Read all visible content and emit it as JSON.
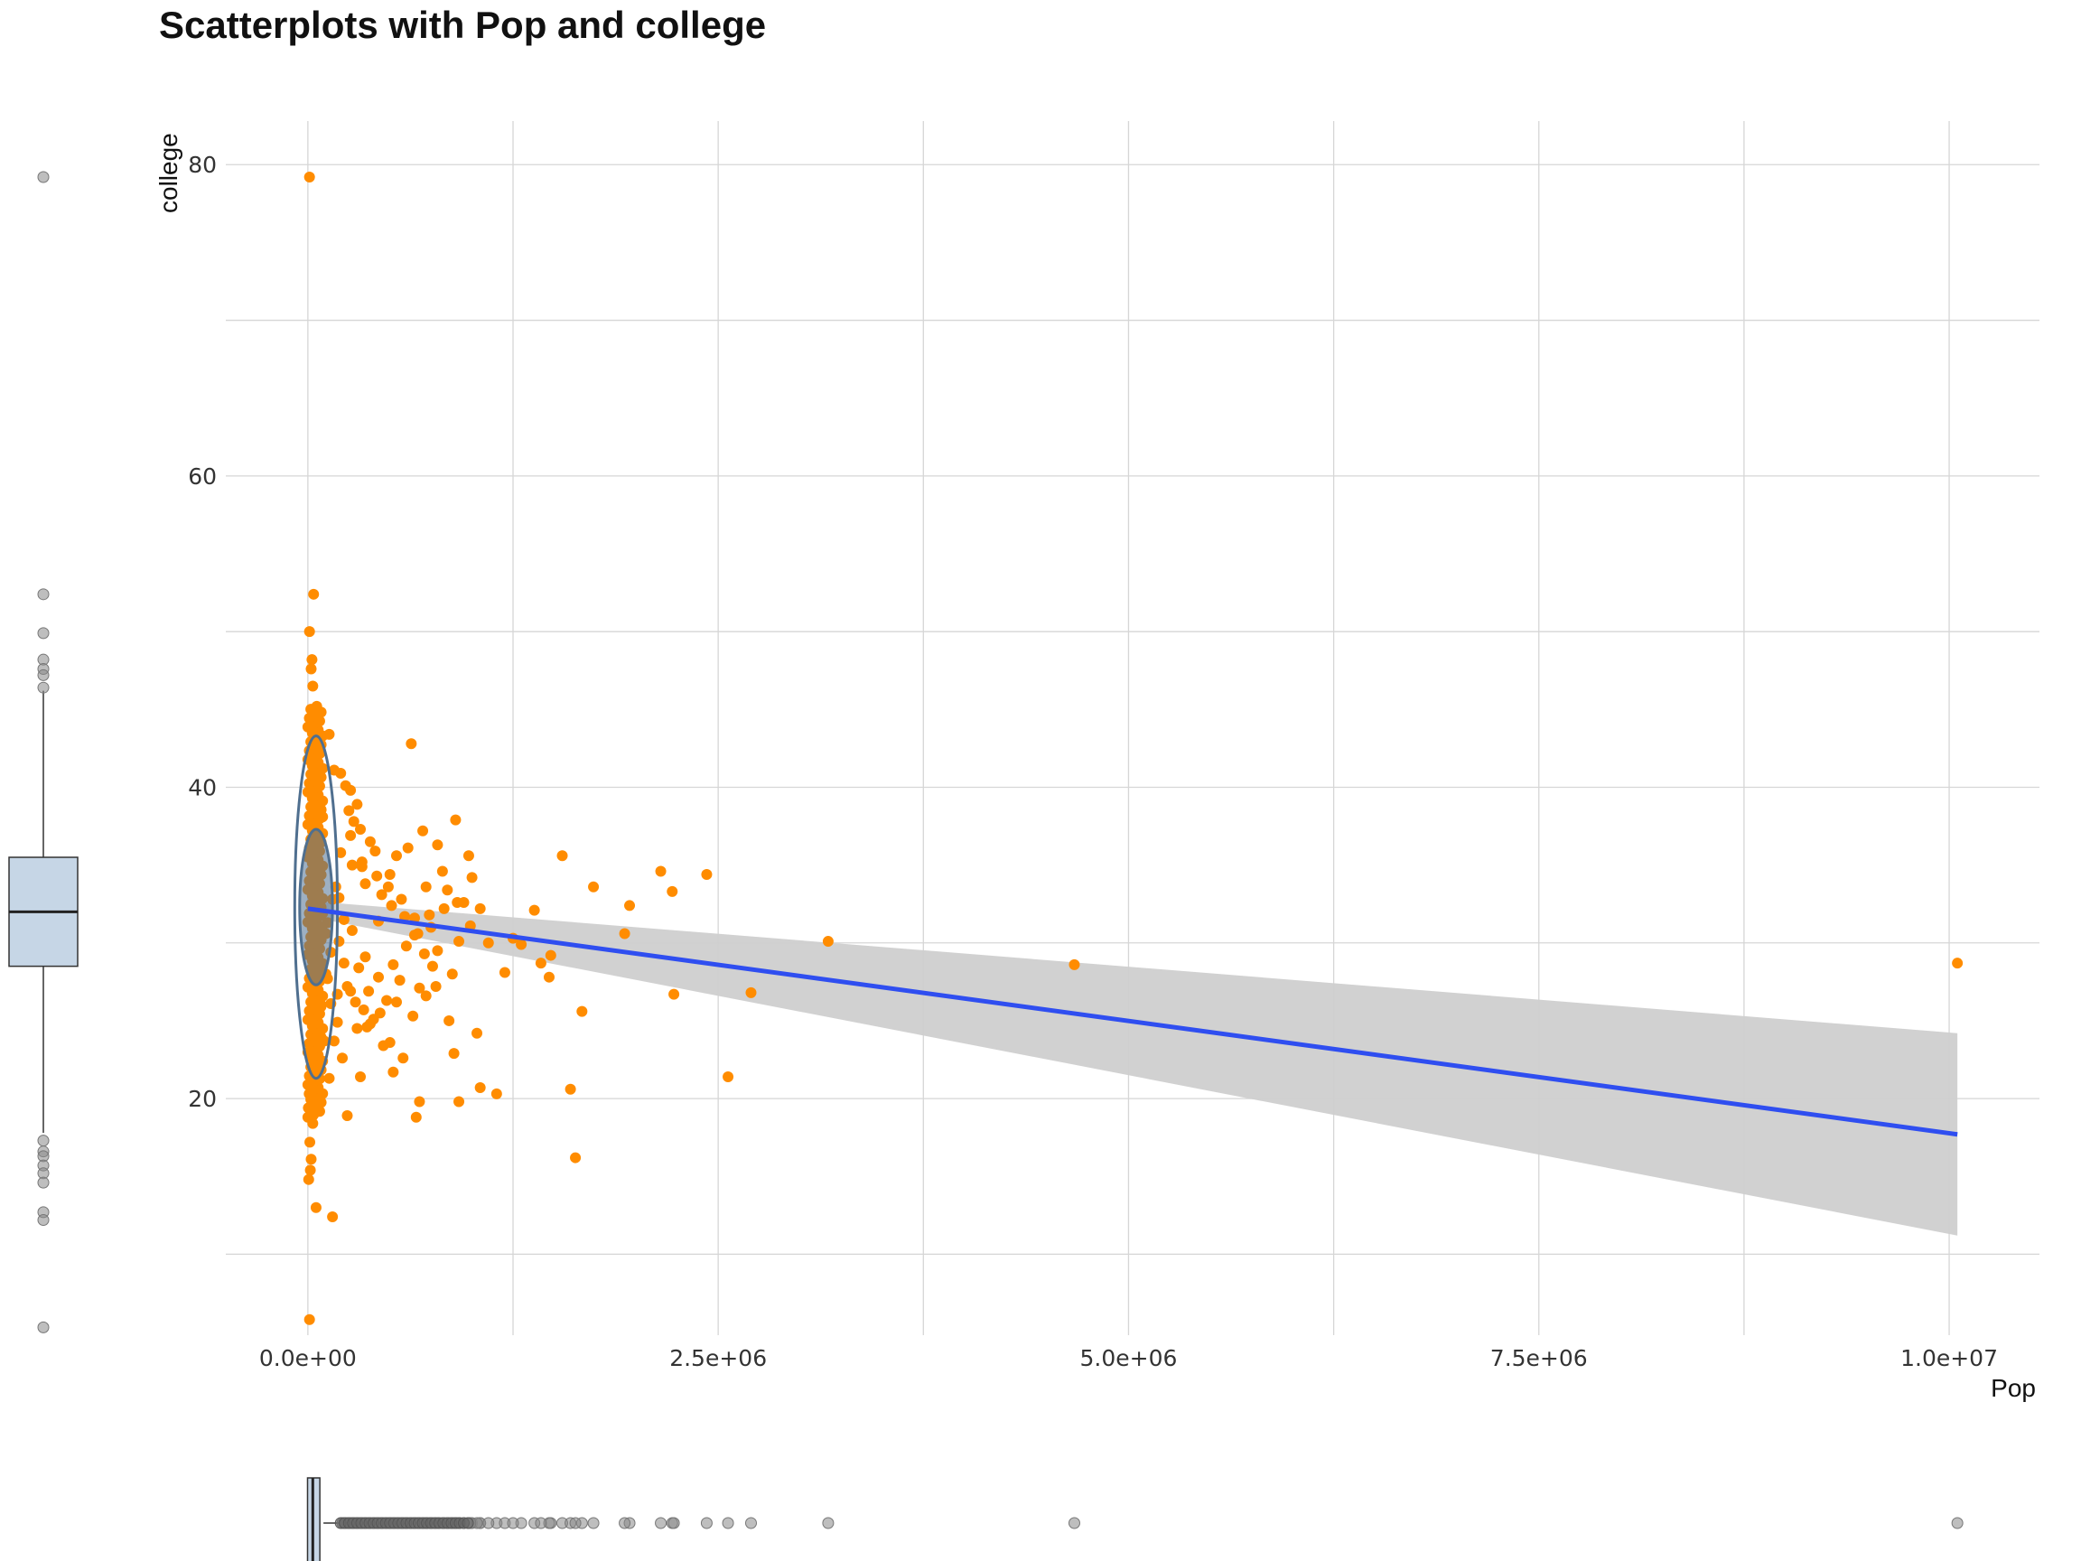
{
  "chart_data": {
    "type": "scatter",
    "title": "Scatterplots with Pop and college",
    "xlabel": "Pop",
    "ylabel": "college",
    "x_ticks": [
      "0.0e+00",
      "2.5e+06",
      "5.0e+06",
      "7.5e+06",
      "1.0e+07"
    ],
    "x_tick_values": [
      0,
      2500000,
      5000000,
      7500000,
      10000000
    ],
    "y_ticks": [
      "20",
      "40",
      "60",
      "80"
    ],
    "y_tick_values": [
      20,
      40,
      60,
      80
    ],
    "xlim": [
      -500000,
      10550000
    ],
    "ylim": [
      4.8,
      82.8
    ],
    "grid": true,
    "point_color": "#ff8c00",
    "line_color": "#2f4ef0",
    "band_color": "#cfcfcf",
    "ellipse_color": "#4f6f8f",
    "boxplot_fill": "#c6d6e6",
    "regression": {
      "x": [
        0,
        10050000
      ],
      "y": [
        32.2,
        17.7
      ],
      "band_upper": [
        32.7,
        24.2
      ],
      "band_lower": [
        31.7,
        11.2
      ]
    },
    "ellipses": [
      {
        "cx": 50000,
        "cy": 32.3,
        "rx": 100000,
        "ry": 5.0
      },
      {
        "cx": 50000,
        "cy": 32.3,
        "rx": 130000,
        "ry": 11.0
      }
    ],
    "y_boxplot": {
      "q1": 28.5,
      "median": 32.0,
      "q3": 35.5,
      "whisker_low": 17.8,
      "whisker_high": 46.2,
      "outliers": [
        79.2,
        52.4,
        49.9,
        48.2,
        47.6,
        47.2,
        46.4,
        17.3,
        16.6,
        16.3,
        15.7,
        15.2,
        14.6,
        12.7,
        12.2,
        5.3
      ]
    },
    "x_boxplot": {
      "q1": 20000,
      "median": 30000,
      "q3": 95000,
      "whisker_low": 0,
      "whisker_high": 200000
    },
    "points": {
      "x": [
        10000,
        35000,
        25000,
        20000,
        10000,
        30000,
        60000,
        60000,
        40000,
        55000,
        85000,
        130000,
        160000,
        230000,
        260000,
        200000,
        250000,
        300000,
        320000,
        380000,
        410000,
        280000,
        330000,
        450000,
        500000,
        540000,
        610000,
        630000,
        700000,
        720000,
        740000,
        790000,
        820000,
        850000,
        900000,
        950000,
        980000,
        1000000,
        1050000,
        920000,
        880000,
        790000,
        720000,
        680000,
        650000,
        600000,
        560000,
        520000,
        480000,
        430000,
        400000,
        370000,
        350000,
        310000,
        270000,
        240000,
        220000,
        190000,
        170000,
        150000,
        140000,
        120000,
        110000,
        90000,
        1550000,
        1740000,
        1960000,
        2150000,
        2430000,
        2220000,
        3170000,
        4670000,
        1930000,
        1380000,
        1300000,
        1480000,
        1470000,
        1420000,
        1670000,
        2230000,
        2700000,
        2560000,
        1600000,
        1630000,
        1150000,
        1050000,
        1030000,
        890000,
        920000,
        680000,
        660000,
        500000,
        520000,
        320000,
        240000,
        150000,
        50000,
        30000,
        10000,
        10050000,
        580000,
        460000,
        380000,
        340000,
        300000,
        260000,
        210000,
        180000,
        160000,
        140000,
        130000,
        100000,
        80000,
        70000,
        60000,
        50000,
        40000,
        30000,
        20000,
        15000,
        12000,
        8000,
        5000,
        3000,
        120000,
        190000,
        270000,
        350000,
        430000,
        510000,
        590000,
        670000,
        750000,
        830000,
        910000,
        990000,
        1100000,
        1200000,
        1250000,
        760000,
        640000,
        540000,
        440000,
        360000,
        290000,
        220000,
        180000,
        110000,
        90000,
        200000,
        260000,
        330000,
        420000,
        490000,
        570000,
        650000,
        710000,
        780000,
        860000
      ],
      "y": [
        79.2,
        52.4,
        48.2,
        47.6,
        50.0,
        46.5,
        43.4,
        40.8,
        44.1,
        38.9,
        41.2,
        43.4,
        41.1,
        40.1,
        39.8,
        40.9,
        38.5,
        38.9,
        37.3,
        36.5,
        35.9,
        37.8,
        35.2,
        33.1,
        34.4,
        35.6,
        36.1,
        42.8,
        37.2,
        33.6,
        31.8,
        36.3,
        34.6,
        33.4,
        37.9,
        32.6,
        35.6,
        34.2,
        32.2,
        30.1,
        28.0,
        29.5,
        26.6,
        27.1,
        30.5,
        29.8,
        27.6,
        28.6,
        26.3,
        27.8,
        25.1,
        26.9,
        29.1,
        28.4,
        30.8,
        27.2,
        31.5,
        30.1,
        33.6,
        32.8,
        29.4,
        27.7,
        30.6,
        31.9,
        35.6,
        33.6,
        32.4,
        34.6,
        34.4,
        33.3,
        30.1,
        28.6,
        30.6,
        32.1,
        29.9,
        29.2,
        27.8,
        28.7,
        25.6,
        26.7,
        26.8,
        21.4,
        20.6,
        16.2,
        20.3,
        20.7,
        24.2,
        22.9,
        19.8,
        19.8,
        18.8,
        23.6,
        21.7,
        21.4,
        18.9,
        12.4,
        13.0,
        18.9,
        5.8,
        28.7,
        22.6,
        23.4,
        24.8,
        25.7,
        24.5,
        26.9,
        22.6,
        24.9,
        23.7,
        26.1,
        21.3,
        23.7,
        25.9,
        22.4,
        24.6,
        20.9,
        20.1,
        18.4,
        16.1,
        15.4,
        17.2,
        20.3,
        14.8,
        19.4,
        31.3,
        32.9,
        35.0,
        33.8,
        31.4,
        32.4,
        31.7,
        30.6,
        31.0,
        32.2,
        32.6,
        31.1,
        30.0,
        28.1,
        30.3,
        28.5,
        25.3,
        26.2,
        25.5,
        24.6,
        26.2,
        28.7,
        26.7,
        28.0,
        38.1,
        35.8,
        36.9,
        34.9,
        34.3,
        33.6,
        32.8,
        31.6,
        29.3,
        27.2,
        25.0
      ]
    }
  }
}
